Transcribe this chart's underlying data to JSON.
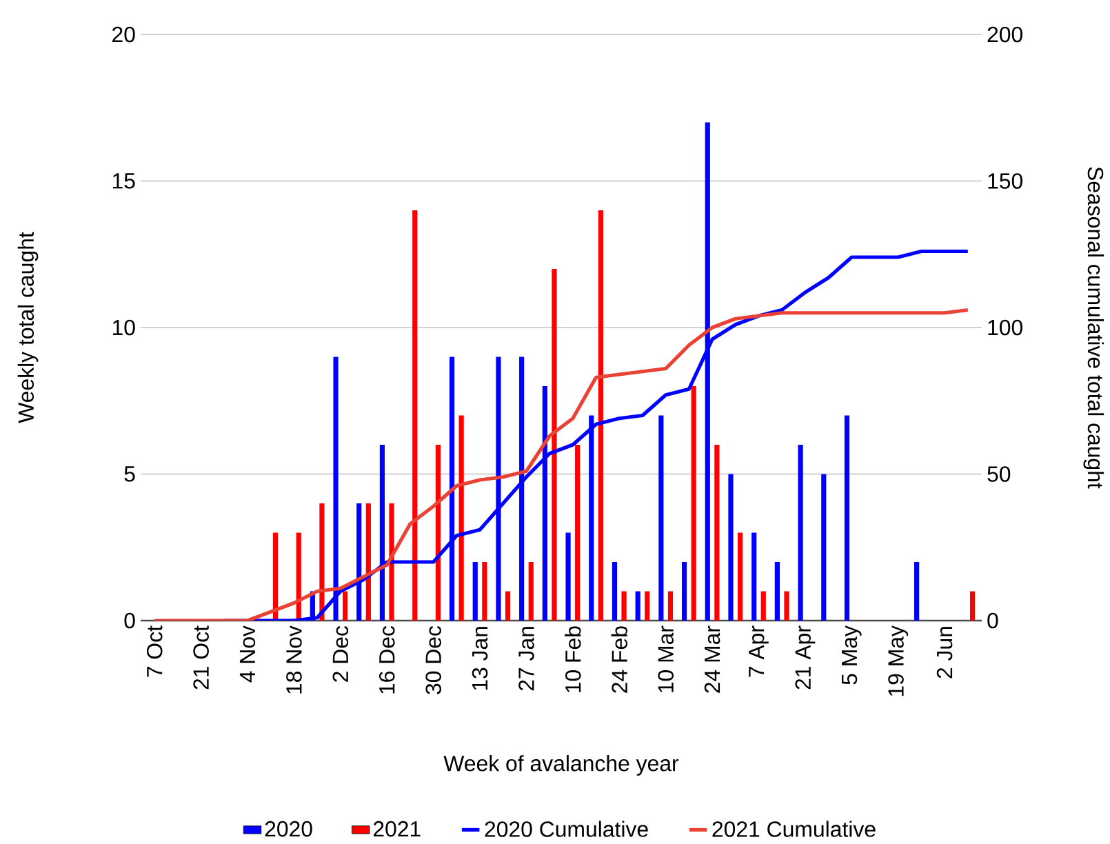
{
  "chart_data": {
    "type": "bar",
    "xlabel": "Week of avalanche year",
    "ylabel": "Weekly total caught",
    "y2label": "Seasonal cumulative total caught",
    "categories": [
      "7 Oct",
      null,
      "21 Oct",
      null,
      "4 Nov",
      null,
      "18 Nov",
      null,
      "2 Dec",
      null,
      "16 Dec",
      null,
      "30 Dec",
      null,
      "13 Jan",
      null,
      "27 Jan",
      null,
      "10 Feb",
      null,
      "24 Feb",
      null,
      "10 Mar",
      null,
      "24 Mar",
      null,
      "7 Apr",
      null,
      "21 Apr",
      null,
      "5 May",
      null,
      "19 May",
      null,
      "2 Jun",
      null
    ],
    "series": [
      {
        "name": "2020",
        "color": "#0000ff",
        "values": [
          0,
          0,
          0,
          0,
          0,
          0,
          0,
          1,
          9,
          4,
          6,
          0,
          0,
          9,
          2,
          9,
          9,
          8,
          3,
          7,
          2,
          1,
          7,
          2,
          17,
          5,
          3,
          2,
          6,
          5,
          7,
          0,
          0,
          2,
          0,
          0
        ]
      },
      {
        "name": "2021",
        "color": "#ff0000",
        "values": [
          0,
          0,
          0,
          0,
          0,
          3,
          3,
          4,
          1,
          4,
          4,
          14,
          6,
          7,
          2,
          1,
          2,
          12,
          6,
          14,
          1,
          1,
          1,
          8,
          6,
          3,
          1,
          1,
          0,
          0,
          0,
          0,
          0,
          0,
          0,
          1
        ]
      },
      {
        "name": "2020 Cumulative",
        "type": "line",
        "axis": "y2",
        "color": "#0000ff",
        "values": [
          null,
          null,
          null,
          0,
          0,
          0,
          0,
          1,
          10,
          14,
          20,
          20,
          20,
          29,
          31,
          40,
          49,
          57,
          60,
          67,
          69,
          70,
          77,
          79,
          96,
          101,
          104,
          106,
          112,
          117,
          124,
          124,
          124,
          126,
          126,
          126
        ]
      },
      {
        "name": "2021 Cumulative",
        "type": "line",
        "axis": "y2",
        "color": "#ea4335",
        "values": [
          0,
          0,
          0,
          0,
          0,
          3,
          6,
          10,
          11,
          15,
          19,
          33,
          39,
          46,
          48,
          49,
          51,
          63,
          69,
          83,
          84,
          85,
          86,
          94,
          100,
          103,
          104,
          105,
          105,
          105,
          105,
          105,
          105,
          105,
          105,
          106
        ]
      }
    ],
    "ylim": [
      0,
      20
    ],
    "yticks": [
      0,
      5,
      10,
      15,
      20
    ],
    "y2lim": [
      0,
      200
    ],
    "y2ticks": [
      0,
      50,
      100,
      150,
      200
    ],
    "grid": "y",
    "legend": "bottom"
  }
}
